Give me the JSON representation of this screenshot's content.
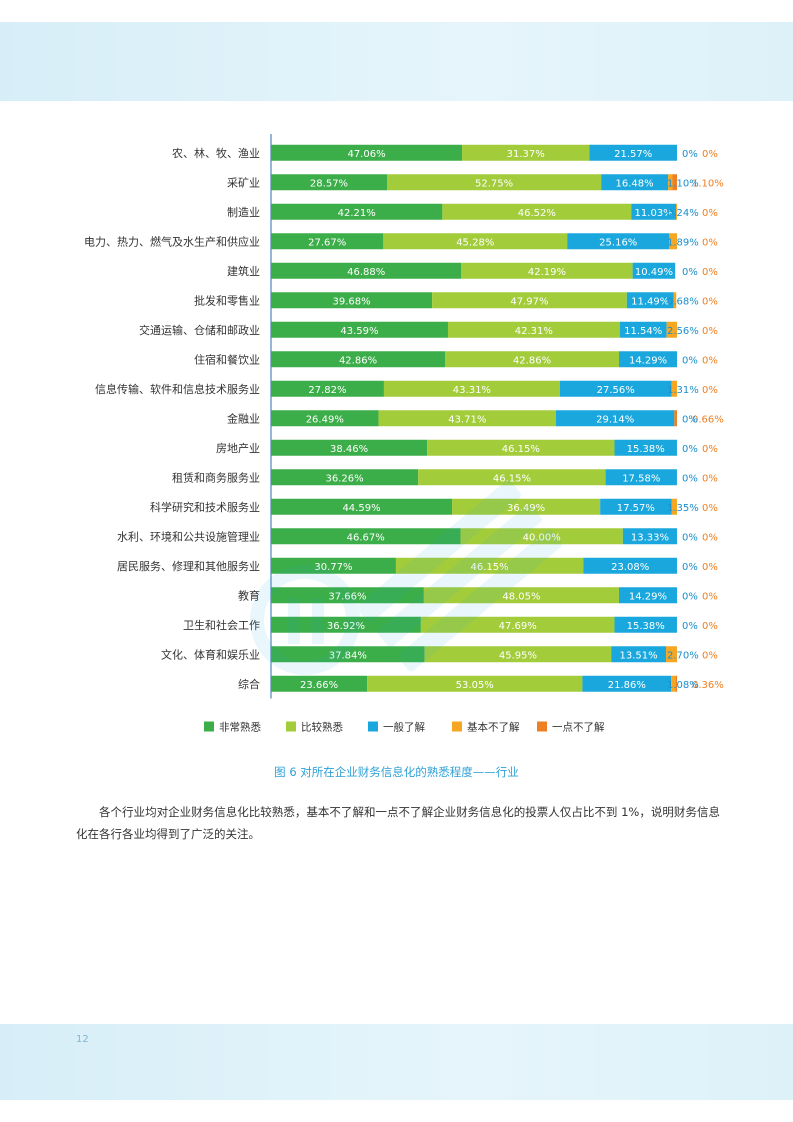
{
  "page_number": "12",
  "caption": "图 6 对所在企业财务信息化的熟悉程度——行业",
  "paragraph": "各个行业均对企业财务信息化比较熟悉，基本不了解和一点不了解企业财务信息化的投票人仅占比不到 1%，说明财务信息化在各行各业均得到了广泛的关注。",
  "colors": {
    "非常熟悉": "#3cae49",
    "比较熟悉": "#a3cc3b",
    "一般了解": "#1aa7dd",
    "基本不了解": "#f5a623",
    "一点不了解": "#ee7f22"
  },
  "chart_data": {
    "type": "bar",
    "orientation": "horizontal",
    "stacked": true,
    "percent_stacked": true,
    "legend_position": "bottom",
    "categories": [
      "农、林、牧、渔业",
      "采矿业",
      "制造业",
      "电力、热力、燃气及水生产和供应业",
      "建筑业",
      "批发和零售业",
      "交通运输、仓储和邮政业",
      "住宿和餐饮业",
      "信息传输、软件和信息技术服务业",
      "金融业",
      "房地产业",
      "租赁和商务服务业",
      "科学研究和技术服务业",
      "水利、环境和公共设施管理业",
      "居民服务、修理和其他服务业",
      "教育",
      "卫生和社会工作",
      "文化、体育和娱乐业",
      "综合"
    ],
    "series": [
      {
        "name": "非常熟悉",
        "values": [
          47.06,
          28.57,
          42.21,
          27.67,
          46.88,
          39.68,
          43.59,
          42.86,
          27.82,
          26.49,
          38.46,
          36.26,
          44.59,
          46.67,
          30.77,
          37.66,
          36.92,
          37.84,
          23.66
        ],
        "labels": [
          "47.06%",
          "28.57%",
          "42.21%",
          "27.67%",
          "46.88%",
          "39.68%",
          "43.59%",
          "42.86%",
          "27.82%",
          "26.49%",
          "38.46%",
          "36.26%",
          "44.59%",
          "46.67%",
          "30.77%",
          "37.66%",
          "36.92%",
          "37.84%",
          "23.66%"
        ]
      },
      {
        "name": "比较熟悉",
        "values": [
          31.37,
          52.75,
          46.52,
          45.28,
          42.19,
          47.97,
          42.31,
          42.86,
          43.31,
          43.71,
          46.15,
          46.15,
          36.49,
          40.0,
          46.15,
          48.05,
          47.69,
          45.95,
          53.05
        ],
        "labels": [
          "31.37%",
          "52.75%",
          "46.52%",
          "45.28%",
          "42.19%",
          "47.97%",
          "42.31%",
          "42.86%",
          "43.31%",
          "43.71%",
          "46.15%",
          "46.15%",
          "36.49%",
          "40.00%",
          "46.15%",
          "48.05%",
          "47.69%",
          "45.95%",
          "53.05%"
        ]
      },
      {
        "name": "一般了解",
        "values": [
          21.57,
          16.48,
          11.03,
          25.16,
          10.49,
          11.49,
          11.54,
          14.29,
          27.56,
          29.14,
          15.38,
          17.58,
          17.57,
          13.33,
          23.08,
          14.29,
          15.38,
          13.51,
          21.86
        ],
        "labels": [
          "21.57%",
          "16.48%",
          "11.03%",
          "25.16%",
          "10.49%",
          "11.49%",
          "11.54%",
          "14.29%",
          "27.56%",
          "29.14%",
          "15.38%",
          "17.58%",
          "17.57%",
          "13.33%",
          "23.08%",
          "14.29%",
          "15.38%",
          "13.51%",
          "21.86%"
        ]
      },
      {
        "name": "基本不了解",
        "values": [
          0,
          1.1,
          0.24,
          1.89,
          0,
          0.68,
          2.56,
          0,
          1.31,
          0,
          0,
          0,
          1.35,
          0,
          0,
          0,
          0,
          2.7,
          1.08
        ],
        "labels": [
          "0%",
          "1.10%",
          "0.24%",
          "1.89%",
          "0%",
          "0.68%",
          "2.56%",
          "0%",
          "1.31%",
          "0%",
          "0%",
          "0%",
          "1.35%",
          "0%",
          "0%",
          "0%",
          "0%",
          "2.70%",
          "1.08%"
        ]
      },
      {
        "name": "一点不了解",
        "values": [
          0,
          1.1,
          0,
          0,
          0,
          0,
          0,
          0,
          0,
          0.66,
          0,
          0,
          0,
          0,
          0,
          0,
          0,
          0,
          0.36
        ],
        "labels": [
          "0%",
          "1.10%",
          "0%",
          "0%",
          "0%",
          "0%",
          "0%",
          "0%",
          "0%",
          "0.66%",
          "0%",
          "0%",
          "0%",
          "0%",
          "0%",
          "0%",
          "0%",
          "0%",
          "0.36%"
        ]
      }
    ],
    "xlim": [
      0,
      100
    ]
  }
}
